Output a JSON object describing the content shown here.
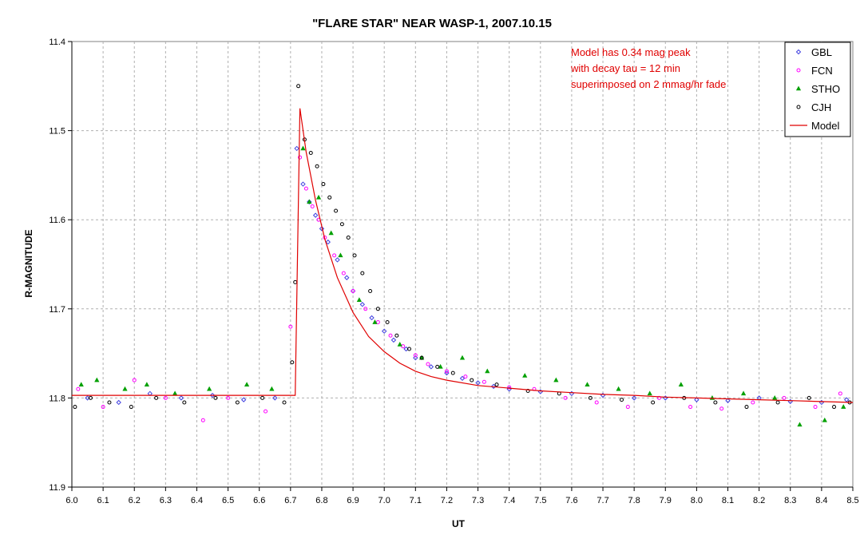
{
  "chart_data": {
    "type": "scatter",
    "title": "\"FLARE STAR\" NEAR WASP-1, 2007.10.15",
    "xlabel": "UT",
    "ylabel": "R-MAGNITUDE",
    "xlim": [
      6.0,
      8.5
    ],
    "ylim": [
      11.4,
      11.9
    ],
    "y_inverted": true,
    "x_ticks": [
      "6.0",
      "6.1",
      "6.2",
      "6.3",
      "6.4",
      "6.5",
      "6.6",
      "6.7",
      "6.8",
      "6.9",
      "7.0",
      "7.1",
      "7.2",
      "7.3",
      "7.4",
      "7.5",
      "7.6",
      "7.7",
      "7.8",
      "7.9",
      "8.0",
      "8.1",
      "8.2",
      "8.3",
      "8.4",
      "8.5"
    ],
    "y_ticks": [
      "11.4",
      "11.5",
      "11.6",
      "11.7",
      "11.8",
      "11.9"
    ],
    "grid": true,
    "legend_position": "top-right",
    "annotation": [
      "Model has 0.34 mag peak",
      "with decay tau = 12 min",
      "superimposed on 2 mmag/hr fade"
    ],
    "series": [
      {
        "name": "GBL",
        "marker": "diamond",
        "color": "#4040e0",
        "x": [
          6.05,
          6.15,
          6.25,
          6.35,
          6.45,
          6.55,
          6.65,
          6.72,
          6.74,
          6.76,
          6.78,
          6.8,
          6.82,
          6.85,
          6.88,
          6.9,
          6.93,
          6.96,
          7.0,
          7.03,
          7.07,
          7.1,
          7.15,
          7.2,
          7.25,
          7.3,
          7.35,
          7.4,
          7.5,
          7.6,
          7.7,
          7.8,
          7.9,
          8.0,
          8.1,
          8.2,
          8.3,
          8.4,
          8.48
        ],
        "y": [
          11.8,
          11.805,
          11.795,
          11.8,
          11.797,
          11.802,
          11.8,
          11.52,
          11.56,
          11.58,
          11.595,
          11.61,
          11.625,
          11.645,
          11.665,
          11.68,
          11.695,
          11.71,
          11.725,
          11.735,
          11.745,
          11.755,
          11.765,
          11.772,
          11.778,
          11.783,
          11.787,
          11.79,
          11.793,
          11.795,
          11.797,
          11.8,
          11.8,
          11.802,
          11.803,
          11.8,
          11.804,
          11.805,
          11.802
        ]
      },
      {
        "name": "FCN",
        "marker": "circle",
        "color": "#ff00ff",
        "x": [
          6.02,
          6.1,
          6.2,
          6.3,
          6.42,
          6.5,
          6.62,
          6.7,
          6.73,
          6.75,
          6.77,
          6.79,
          6.81,
          6.84,
          6.87,
          6.9,
          6.94,
          6.98,
          7.02,
          7.06,
          7.1,
          7.14,
          7.2,
          7.26,
          7.32,
          7.4,
          7.48,
          7.58,
          7.68,
          7.78,
          7.88,
          7.98,
          8.08,
          8.18,
          8.28,
          8.38,
          8.46
        ],
        "y": [
          11.79,
          11.81,
          11.78,
          11.8,
          11.825,
          11.8,
          11.815,
          11.72,
          11.53,
          11.565,
          11.585,
          11.6,
          11.62,
          11.64,
          11.66,
          11.68,
          11.7,
          11.715,
          11.73,
          11.742,
          11.752,
          11.762,
          11.77,
          11.776,
          11.782,
          11.788,
          11.79,
          11.8,
          11.805,
          11.81,
          11.8,
          11.81,
          11.812,
          11.805,
          11.8,
          11.81,
          11.795
        ]
      },
      {
        "name": "STHO",
        "marker": "triangle",
        "color": "#00a000",
        "x": [
          6.03,
          6.08,
          6.17,
          6.24,
          6.33,
          6.44,
          6.56,
          6.64,
          6.74,
          6.76,
          6.79,
          6.83,
          6.86,
          6.92,
          6.97,
          7.05,
          7.12,
          7.18,
          7.25,
          7.33,
          7.45,
          7.55,
          7.65,
          7.75,
          7.85,
          7.95,
          8.05,
          8.15,
          8.25,
          8.33,
          8.41,
          8.47
        ],
        "y": [
          11.785,
          11.78,
          11.79,
          11.785,
          11.795,
          11.79,
          11.785,
          11.79,
          11.52,
          11.58,
          11.575,
          11.615,
          11.64,
          11.69,
          11.715,
          11.74,
          11.755,
          11.765,
          11.755,
          11.77,
          11.775,
          11.78,
          11.785,
          11.79,
          11.795,
          11.785,
          11.8,
          11.795,
          11.8,
          11.83,
          11.825,
          11.81
        ]
      },
      {
        "name": "CJH",
        "marker": "circle",
        "color": "#000000",
        "x": [
          6.01,
          6.06,
          6.12,
          6.19,
          6.27,
          6.36,
          6.46,
          6.53,
          6.61,
          6.68,
          6.705,
          6.715,
          6.725,
          6.745,
          6.765,
          6.785,
          6.805,
          6.825,
          6.845,
          6.865,
          6.885,
          6.905,
          6.93,
          6.955,
          6.98,
          7.01,
          7.04,
          7.08,
          7.12,
          7.17,
          7.22,
          7.28,
          7.36,
          7.46,
          7.56,
          7.66,
          7.76,
          7.86,
          7.96,
          8.06,
          8.16,
          8.26,
          8.36,
          8.44,
          8.49
        ],
        "y": [
          11.81,
          11.8,
          11.805,
          11.81,
          11.8,
          11.805,
          11.8,
          11.805,
          11.8,
          11.805,
          11.76,
          11.67,
          11.45,
          11.51,
          11.525,
          11.54,
          11.56,
          11.575,
          11.59,
          11.605,
          11.62,
          11.64,
          11.66,
          11.68,
          11.7,
          11.715,
          11.73,
          11.745,
          11.755,
          11.765,
          11.772,
          11.78,
          11.785,
          11.792,
          11.795,
          11.8,
          11.802,
          11.805,
          11.8,
          11.805,
          11.81,
          11.805,
          11.8,
          11.81,
          11.805
        ]
      },
      {
        "name": "Model",
        "marker": "line",
        "color": "#e00000",
        "x": [
          6.0,
          6.715,
          6.73,
          6.75,
          6.78,
          6.81,
          6.85,
          6.9,
          6.95,
          7.0,
          7.05,
          7.1,
          7.15,
          7.2,
          7.3,
          7.4,
          7.5,
          7.6,
          7.7,
          7.8,
          7.9,
          8.0,
          8.1,
          8.2,
          8.3,
          8.4,
          8.5
        ],
        "y": [
          11.797,
          11.797,
          11.475,
          11.524,
          11.578,
          11.622,
          11.665,
          11.704,
          11.731,
          11.748,
          11.761,
          11.77,
          11.776,
          11.78,
          11.786,
          11.789,
          11.792,
          11.794,
          11.796,
          11.797,
          11.799,
          11.8,
          11.801,
          11.802,
          11.803,
          11.804,
          11.805
        ]
      }
    ]
  }
}
